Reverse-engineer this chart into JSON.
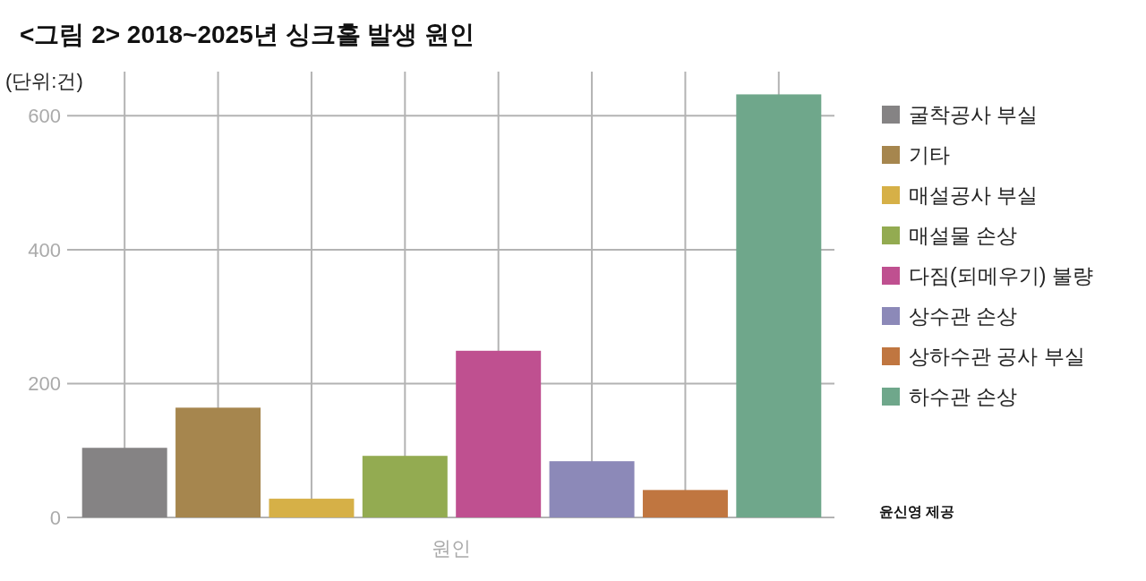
{
  "chart_data": {
    "type": "bar",
    "title": "<그림 2> 2018~2025년 싱크홀 발생 원인",
    "ylabel": "(단위:건)",
    "xlabel": "원인",
    "categories": [
      null,
      null,
      null,
      null,
      null,
      null,
      null,
      null
    ],
    "stacked": true,
    "series": [
      {
        "name": "굴착공사 부실",
        "color": "#858384",
        "values": [
          104,
          null,
          null,
          null,
          null,
          null,
          null,
          null
        ]
      },
      {
        "name": "기타",
        "color": "#a6864e",
        "values": [
          null,
          164,
          null,
          null,
          null,
          null,
          null,
          null
        ]
      },
      {
        "name": "매설공사 부실",
        "color": "#d6b047",
        "values": [
          null,
          null,
          28,
          null,
          null,
          null,
          null,
          null
        ]
      },
      {
        "name": "매설물 손상",
        "color": "#93ab51",
        "values": [
          null,
          null,
          null,
          92,
          null,
          null,
          null,
          null
        ]
      },
      {
        "name": "다짐(되메우기) 불량",
        "color": "#bf5090",
        "values": [
          null,
          null,
          null,
          null,
          249,
          null,
          null,
          null
        ]
      },
      {
        "name": "상수관 손상",
        "color": "#8c89b8",
        "values": [
          null,
          null,
          null,
          null,
          null,
          84,
          null,
          null
        ]
      },
      {
        "name": "상하수관 공사 부실",
        "color": "#c07640",
        "values": [
          null,
          null,
          null,
          null,
          null,
          null,
          41,
          null
        ]
      },
      {
        "name": "하수관 손상",
        "color": "#6fa78b",
        "values": [
          null,
          null,
          null,
          null,
          null,
          null,
          null,
          632
        ]
      }
    ],
    "ylim": [
      0,
      666
    ],
    "yticks": [
      0,
      200,
      400,
      600
    ],
    "grid": true,
    "legend": "right",
    "tick_labels": "y",
    "annotations": [
      "윤신영 제공"
    ]
  }
}
